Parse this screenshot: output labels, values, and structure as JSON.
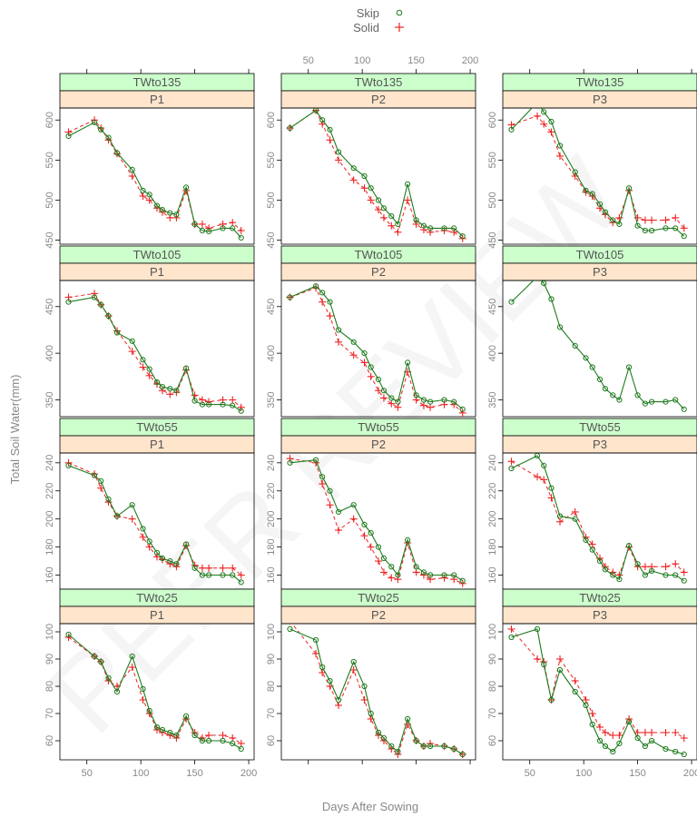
{
  "chart_data": {
    "type": "line",
    "xlabel": "Days After Sowing",
    "ylabel": "Total Soil Water(mm)",
    "x_ticks": [
      50,
      100,
      150,
      200
    ],
    "xlim": [
      25,
      205
    ],
    "legend": {
      "placement": "top-center",
      "entries": [
        {
          "name": "Skip",
          "color": "#1e7b1e",
          "symbol": "circle",
          "line": "solid"
        },
        {
          "name": "Solid",
          "color": "#ee2222",
          "symbol": "plus",
          "line": "dashed"
        }
      ]
    },
    "colors": {
      "skip": "#1e7b1e",
      "solid": "#ee2222",
      "strip_outer": "#ccffcc",
      "strip_inner": "#ffe5cc"
    },
    "watermark": "PEER REVIEW",
    "x": [
      33,
      57,
      63,
      70,
      78,
      92,
      102,
      108,
      115,
      120,
      127,
      133,
      142,
      150,
      157,
      163,
      176,
      185,
      193
    ],
    "rows": [
      {
        "strip": "TWto135",
        "ylim": [
          445,
          615
        ],
        "y_ticks": [
          450,
          500,
          550,
          600
        ],
        "panels": [
          {
            "strip": "P1",
            "skip": [
              580,
              597,
              588,
              578,
              559,
              538,
              512,
              507,
              493,
              488,
              484,
              482,
              516,
              470,
              462,
              461,
              465,
              465,
              453
            ],
            "solid": [
              585,
              600,
              590,
              575,
              558,
              530,
              505,
              500,
              490,
              485,
              478,
              478,
              512,
              470,
              470,
              465,
              470,
              472,
              462
            ]
          },
          {
            "strip": "P2",
            "skip": [
              590,
              612,
              600,
              588,
              560,
              540,
              530,
              515,
              500,
              490,
              480,
              470,
              520,
              475,
              468,
              465,
              465,
              465,
              455
            ],
            "solid": [
              590,
              612,
              595,
              575,
              550,
              525,
              515,
              500,
              488,
              478,
              468,
              460,
              500,
              470,
              463,
              460,
              462,
              460,
              452
            ]
          },
          {
            "strip": "P3",
            "skip": [
              588,
              622,
              610,
              598,
              568,
              535,
              512,
              508,
              495,
              485,
              475,
              470,
              515,
              468,
              462,
              462,
              465,
              465,
              455
            ],
            "solid": [
              594,
              605,
              595,
              585,
              555,
              530,
              510,
              505,
              490,
              482,
              472,
              478,
              512,
              478,
              475,
              475,
              475,
              478,
              465
            ]
          }
        ]
      },
      {
        "strip": "TWto105",
        "ylim": [
          332,
          478
        ],
        "y_ticks": [
          350,
          400,
          450
        ],
        "panels": [
          {
            "strip": "P1",
            "skip": [
              455,
              460,
              452,
              440,
              422,
              413,
              393,
              383,
              369,
              364,
              362,
              360,
              384,
              349,
              345,
              345,
              345,
              344,
              338
            ],
            "solid": [
              460,
              464,
              452,
              440,
              424,
              402,
              385,
              376,
              367,
              360,
              356,
              358,
              382,
              355,
              350,
              348,
              350,
              350,
              342
            ]
          },
          {
            "strip": "P2",
            "skip": [
              460,
              472,
              465,
              455,
              425,
              412,
              400,
              385,
              372,
              360,
              352,
              348,
              390,
              355,
              350,
              348,
              350,
              348,
              340
            ],
            "solid": [
              460,
              470,
              455,
              440,
              412,
              398,
              390,
              375,
              360,
              352,
              346,
              342,
              380,
              350,
              344,
              342,
              345,
              345,
              336
            ]
          },
          {
            "strip": "P3",
            "skip": [
              455,
              482,
              475,
              458,
              428,
              408,
              395,
              385,
              372,
              362,
              355,
              350,
              385,
              355,
              346,
              348,
              348,
              350,
              340
            ]
          }
        ]
      },
      {
        "strip": "TWto55",
        "ylim": [
          150,
          247
        ],
        "y_ticks": [
          160,
          180,
          200,
          220,
          240
        ],
        "panels": [
          {
            "strip": "P1",
            "skip": [
              238,
              231,
              227,
              214,
              202,
              210,
              193,
              184,
              176,
              172,
              170,
              168,
              182,
              165,
              160,
              160,
              160,
              160,
              155
            ],
            "solid": [
              240,
              232,
              222,
              212,
              202,
              200,
              187,
              180,
              173,
              171,
              168,
              166,
              181,
              167,
              165,
              165,
              165,
              165,
              160
            ]
          },
          {
            "strip": "P2",
            "skip": [
              240,
              242,
              230,
              220,
              205,
              210,
              196,
              190,
              180,
              172,
              166,
              160,
              185,
              166,
              162,
              160,
              160,
              160,
              156
            ],
            "solid": [
              243,
              240,
              225,
              210,
              192,
              200,
              188,
              180,
              170,
              162,
              158,
              157,
              183,
              162,
              160,
              157,
              158,
              157,
              154
            ]
          },
          {
            "strip": "P3",
            "skip": [
              236,
              245,
              238,
              222,
              202,
              200,
              185,
              178,
              170,
              164,
              160,
              157,
              181,
              168,
              160,
              163,
              160,
              160,
              156
            ],
            "solid": [
              241,
              230,
              228,
              215,
              198,
              205,
              187,
              182,
              172,
              166,
              162,
              160,
              180,
              166,
              166,
              166,
              166,
              168,
              162
            ]
          }
        ]
      },
      {
        "strip": "TWto25",
        "ylim": [
          53,
          103
        ],
        "y_ticks": [
          60,
          70,
          80,
          90,
          100
        ],
        "panels": [
          {
            "strip": "P1",
            "skip": [
              99,
              91,
              89,
              83,
              78,
              91,
              79,
              71,
              65,
              64,
              63,
              62,
              69,
              62,
              60,
              60,
              60,
              59,
              57
            ],
            "solid": [
              98,
              91,
              89,
              82,
              80,
              87,
              75,
              70,
              64,
              63,
              62,
              61,
              68,
              63,
              61,
              62,
              62,
              61,
              59
            ]
          },
          {
            "strip": "P2",
            "skip": [
              101,
              97,
              87,
              82,
              75,
              89,
              80,
              70,
              63,
              61,
              58,
              56,
              68,
              60,
              58,
              58,
              58,
              57,
              55
            ],
            "solid": [
              104,
              92,
              85,
              80,
              73,
              86,
              75,
              68,
              62,
              60,
              57,
              55,
              66,
              60,
              58,
              59,
              58,
              57,
              55
            ]
          },
          {
            "strip": "P3",
            "skip": [
              98,
              101,
              88,
              75,
              86,
              78,
              73,
              66,
              60,
              58,
              56,
              59,
              67,
              61,
              58,
              60,
              57,
              56,
              55
            ],
            "solid": [
              101,
              90,
              89,
              75,
              90,
              82,
              75,
              70,
              65,
              63,
              62,
              62,
              68,
              63,
              63,
              63,
              63,
              63,
              61
            ]
          }
        ]
      }
    ]
  }
}
